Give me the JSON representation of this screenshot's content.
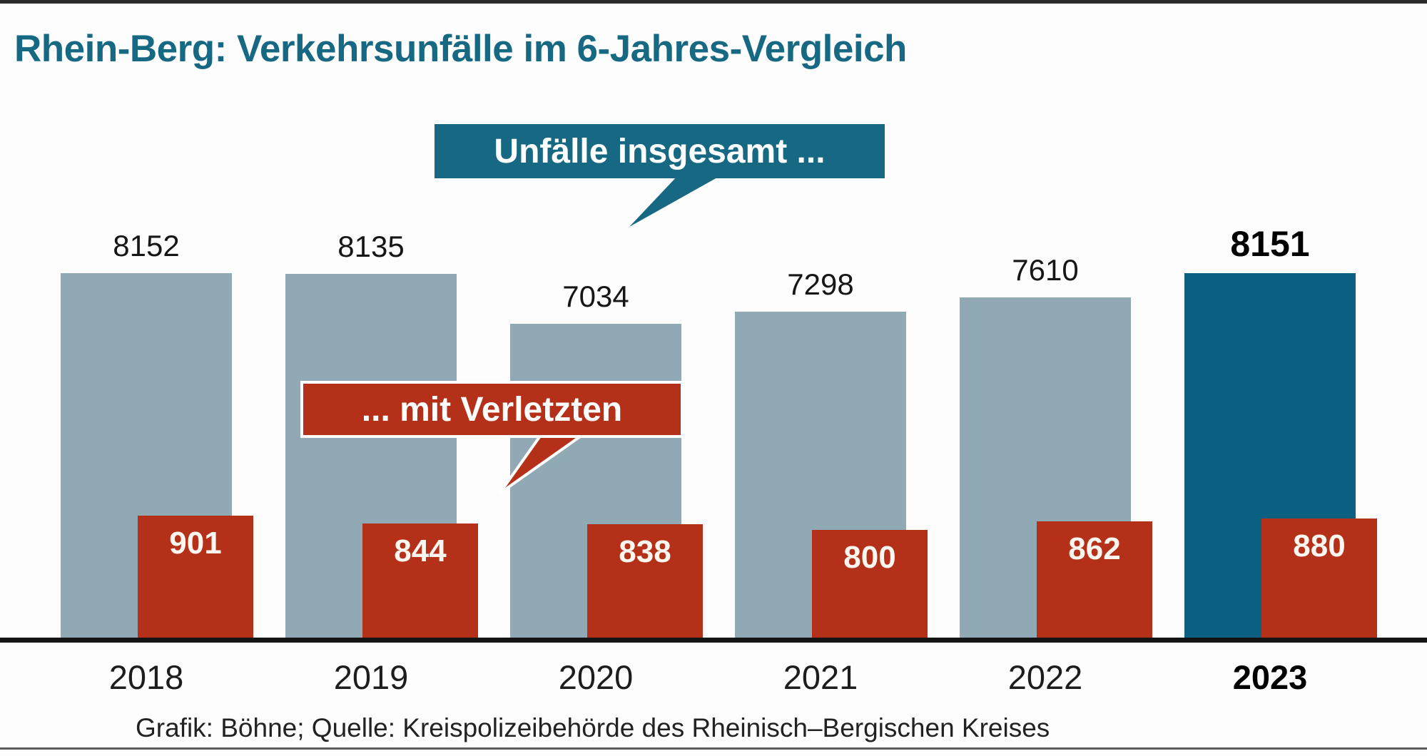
{
  "title": "Rhein-Berg: Verkehrsunfälle im 6-Jahres-Vergleich",
  "source_credit": "Grafik: Böhne; Quelle: Kreispolizeibehörde des Rheinisch–Bergischen Kreises",
  "colors": {
    "accent_teal": "#176983",
    "accent_red": "#b43019",
    "bar_gray": "#90a9b5",
    "highlight_bar_teal": "#0c6182",
    "baseline_black": "#141414",
    "value_text": "#161616",
    "bubble_text": "#ffffff"
  },
  "chart_data": {
    "type": "bar",
    "title": "Rhein-Berg: Verkehrsunfälle im 6-Jahres-Vergleich",
    "categories": [
      "2018",
      "2019",
      "2020",
      "2021",
      "2022",
      "2023"
    ],
    "series": [
      {
        "name": "Unfälle insgesamt ...",
        "values": [
          8152,
          8135,
          7034,
          7298,
          7610,
          8151
        ],
        "color": "#90a9b5",
        "highlight_color": "#0c6182"
      },
      {
        "name": "... mit Verletzten",
        "values": [
          901,
          844,
          838,
          800,
          862,
          880
        ],
        "color": "#b43019"
      }
    ],
    "highlight_year": "2023",
    "value_labels_shown": true,
    "grid": false,
    "xlabel": "",
    "ylabel": "",
    "legend_position": "speech-bubble-callouts-overlay",
    "note": "Infographic: injured-accidents bars are drawn at a larger per-unit pixel scale than total-accidents bars; totals labeled above gray bars, injured counts inside red bars; 2023 highlighted in teal."
  }
}
